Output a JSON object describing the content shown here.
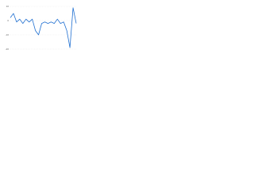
{
  "chart_data": {
    "type": "line",
    "categories": [
      null,
      null,
      null,
      null,
      null,
      null,
      null,
      null,
      null,
      null,
      null,
      null,
      null,
      null,
      null,
      null,
      null,
      null,
      null,
      null,
      null,
      null
    ],
    "series": [
      {
        "color": "#1f6fd1",
        "values": [
          2,
          5,
          -1,
          1,
          -2,
          1,
          -1,
          1,
          -7,
          -10,
          -2,
          -1,
          -2,
          -1,
          -2,
          1,
          -2,
          -1,
          -7,
          -19,
          9,
          -2
        ]
      }
    ],
    "ylim": [
      -20,
      10
    ],
    "yticks": [
      -20,
      -10,
      0,
      10
    ],
    "grid": true
  }
}
